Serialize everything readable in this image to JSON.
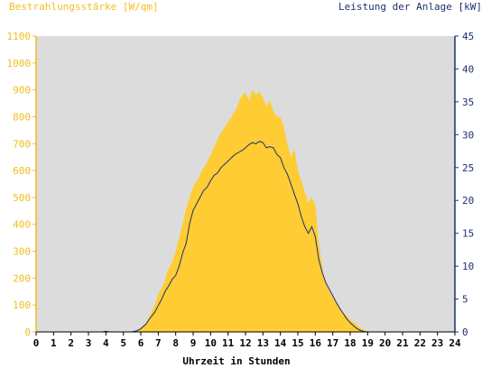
{
  "chart_data": {
    "type": "area",
    "title_left": "Bestrahlungsstärke [W/qm]",
    "title_right": "Leistung der Anlage [kW]",
    "xlabel": "Uhrzeit in Stunden",
    "x_ticks": [
      "0",
      "1",
      "2",
      "3",
      "4",
      "5",
      "6",
      "7",
      "8",
      "9",
      "10",
      "11",
      "12",
      "13",
      "14",
      "15",
      "16",
      "17",
      "18",
      "19",
      "20",
      "21",
      "22",
      "23",
      "24"
    ],
    "xlim": [
      0,
      24
    ],
    "ylim_left": [
      0,
      1100
    ],
    "ylim_right": [
      0,
      45
    ],
    "y_ticks_left": [
      "0",
      "100",
      "200",
      "300",
      "400",
      "500",
      "600",
      "700",
      "800",
      "900",
      "1000",
      "1100"
    ],
    "y_ticks_right": [
      "0",
      "5",
      "10",
      "15",
      "20",
      "25",
      "30",
      "35",
      "40",
      "45"
    ],
    "grid": false,
    "colors": {
      "plot_background": "#dcdcdc",
      "irradiance_fill": "#ffcc33",
      "power_line": "#1f2f6e",
      "left_axis": "#f2bd1f",
      "right_axis": "#1f2f6e"
    },
    "series": [
      {
        "axis": "left",
        "type": "area",
        "x": [
          0,
          5.5,
          5.8,
          6,
          6.3,
          6.5,
          6.8,
          7,
          7.3,
          7.5,
          7.8,
          8,
          8.2,
          8.4,
          8.6,
          8.8,
          9,
          9.3,
          9.5,
          9.8,
          10,
          10.3,
          10.5,
          10.8,
          11,
          11.2,
          11.4,
          11.6,
          11.8,
          12,
          12.2,
          12.4,
          12.6,
          12.8,
          13,
          13.2,
          13.4,
          13.6,
          13.8,
          14,
          14.2,
          14.4,
          14.6,
          14.8,
          15,
          15.2,
          15.4,
          15.6,
          15.8,
          16,
          16.2,
          16.5,
          16.8,
          17,
          17.3,
          17.5,
          17.8,
          18,
          18.3,
          18.5,
          18.8,
          19,
          19.2,
          24
        ],
        "y": [
          0,
          0,
          5,
          15,
          35,
          60,
          100,
          140,
          175,
          220,
          260,
          300,
          350,
          400,
          460,
          500,
          540,
          570,
          600,
          630,
          660,
          700,
          730,
          760,
          780,
          800,
          820,
          850,
          880,
          890,
          860,
          900,
          880,
          895,
          870,
          840,
          860,
          820,
          800,
          800,
          760,
          700,
          650,
          680,
          600,
          560,
          520,
          480,
          500,
          470,
          330,
          200,
          150,
          130,
          100,
          80,
          60,
          45,
          30,
          18,
          8,
          2,
          0,
          0
        ]
      },
      {
        "axis": "right",
        "type": "line",
        "x": [
          0,
          3.8,
          4,
          4.2,
          5.5,
          5.8,
          6,
          6.3,
          6.5,
          6.8,
          7,
          7.2,
          7.4,
          7.6,
          7.8,
          8,
          8.2,
          8.4,
          8.6,
          8.8,
          9,
          9.2,
          9.4,
          9.6,
          9.8,
          10,
          10.2,
          10.4,
          10.6,
          10.8,
          11,
          11.2,
          11.4,
          11.6,
          11.8,
          12,
          12.2,
          12.4,
          12.6,
          12.8,
          13,
          13.2,
          13.4,
          13.6,
          13.8,
          14,
          14.2,
          14.4,
          14.6,
          14.8,
          15,
          15.2,
          15.4,
          15.6,
          15.8,
          16,
          16.2,
          16.4,
          16.6,
          16.8,
          17,
          17.2,
          17.4,
          17.6,
          17.8,
          18,
          18.2,
          18.4,
          18.6,
          18.8,
          19,
          19.2,
          24
        ],
        "y": [
          0,
          0,
          0.1,
          0,
          0,
          0.2,
          0.5,
          1.2,
          2.0,
          3.0,
          4.0,
          5.0,
          6.2,
          7.0,
          8.0,
          8.6,
          10.0,
          12.0,
          13.5,
          16.5,
          18.5,
          19.5,
          20.5,
          21.5,
          22.0,
          23.0,
          23.8,
          24.2,
          25.0,
          25.5,
          26.0,
          26.5,
          27.0,
          27.3,
          27.6,
          28.0,
          28.5,
          28.8,
          28.6,
          29.0,
          28.8,
          28.0,
          28.2,
          28.0,
          27.0,
          26.5,
          25.0,
          24.0,
          22.5,
          21.0,
          19.5,
          17.5,
          16.0,
          15.0,
          16.0,
          14.5,
          11.0,
          9.0,
          7.5,
          6.5,
          5.5,
          4.5,
          3.6,
          2.8,
          2.0,
          1.4,
          0.9,
          0.5,
          0.2,
          0.05,
          0,
          0,
          0
        ]
      }
    ]
  }
}
